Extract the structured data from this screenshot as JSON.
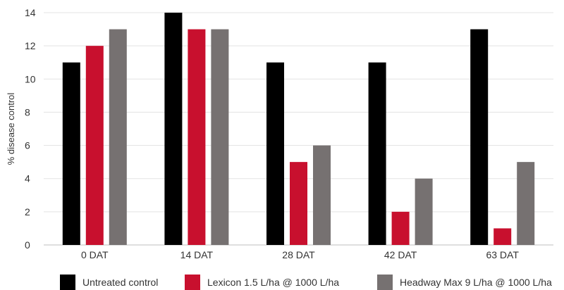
{
  "chart_data": {
    "type": "bar",
    "title": "",
    "xlabel": "",
    "ylabel": "% disease control",
    "ylim": [
      0,
      14
    ],
    "yticks": [
      0,
      2,
      4,
      6,
      8,
      10,
      12,
      14
    ],
    "grid": true,
    "legend_position": "bottom",
    "categories": [
      "0 DAT",
      "14 DAT",
      "28 DAT",
      "42 DAT",
      "63 DAT"
    ],
    "series": [
      {
        "name": "Untreated control",
        "color": "#000000",
        "values": [
          11,
          14,
          11,
          11,
          13
        ]
      },
      {
        "name": "Lexicon 1.5 L/ha @ 1000 L/ha",
        "color": "#c8102e",
        "values": [
          12,
          13,
          5,
          2,
          1
        ]
      },
      {
        "name": "Headway Max 9 L/ha @ 1000 L/ha",
        "color": "#767171",
        "values": [
          13,
          13,
          6,
          4,
          5
        ]
      }
    ]
  }
}
